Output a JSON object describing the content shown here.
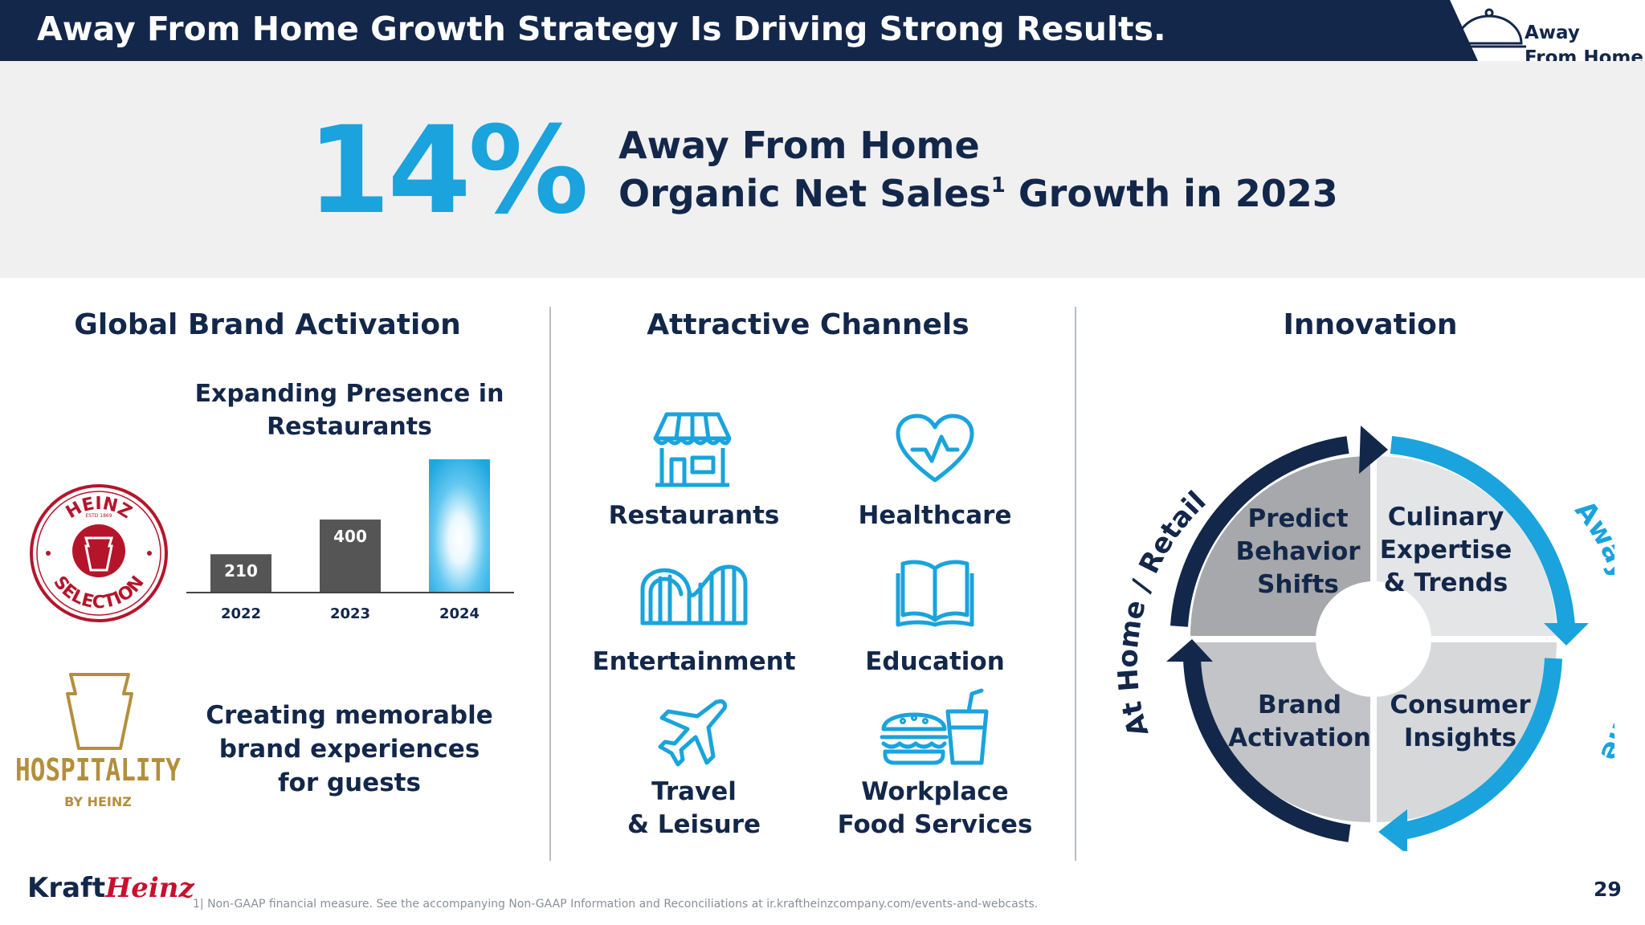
{
  "header": {
    "title": "Away From Home Growth Strategy Is Driving Strong Results.",
    "badge_line1": "Away",
    "badge_line2": "From Home"
  },
  "hero": {
    "percent": "14%",
    "line1": "Away From Home",
    "line2_prefix": "Organic Net Sales",
    "line2_sup": "1",
    "line2_suffix": " Growth in 2023"
  },
  "sections": {
    "brand_activation": "Global Brand Activation",
    "channels": "Attractive Channels",
    "innovation": "Innovation"
  },
  "brand": {
    "chart_title": "Expanding Presence in Restaurants",
    "memorable_text": "Creating memorable brand experiences for guests",
    "heinz_top": "HEINZ",
    "heinz_est": "ESTD 1869",
    "heinz_bottom": "SELECTION",
    "hospitality": "HOSPITALITY",
    "hospitality_by": "BY HEINZ"
  },
  "chart_data": {
    "type": "bar",
    "title": "Expanding Presence in Restaurants",
    "categories": [
      "2022",
      "2023",
      "2024"
    ],
    "values": [
      210,
      400,
      730
    ],
    "data_labels": [
      "210",
      "400",
      ""
    ],
    "ylim": [
      0,
      730
    ],
    "colors": [
      "#555555",
      "#555555",
      "#2ab0e6"
    ]
  },
  "channels": [
    {
      "id": "restaurants",
      "label": "Restaurants"
    },
    {
      "id": "healthcare",
      "label": "Healthcare"
    },
    {
      "id": "entertainment",
      "label": "Entertainment"
    },
    {
      "id": "education",
      "label": "Education"
    },
    {
      "id": "travel",
      "label": "Travel\n& Leisure"
    },
    {
      "id": "workplace",
      "label": "Workplace\nFood Services"
    }
  ],
  "innovation": {
    "quadrants": {
      "top_left": "Predict\nBehavior\nShifts",
      "top_right": "Culinary\nExpertise\n& Trends",
      "bottom_left": "Brand\nActivation",
      "bottom_right": "Consumer\nInsights"
    },
    "left_arc_label": "At Home / Retail",
    "right_arc_label": "Away from Home"
  },
  "footer": {
    "logo_kraft": "Kraft",
    "logo_heinz": "Heinz",
    "footnote": "1| Non-GAAP financial measure. See the accompanying Non-GAAP Information and Reconciliations at ir.kraftheinzcompany.com/events-and-webcasts.",
    "page_number": "29"
  },
  "colors": {
    "navy": "#13274a",
    "accent_blue": "#1aa3dc",
    "heinz_red": "#b5152b",
    "hospitality_gold": "#b38f3c",
    "quadrant_dark": "#a6a8ab",
    "quadrant_light": "#e4e5e7"
  }
}
